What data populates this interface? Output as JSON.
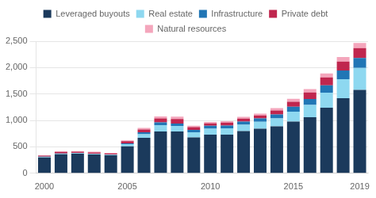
{
  "chart_data": {
    "type": "bar",
    "stacked": true,
    "categories": [
      "2000",
      null,
      null,
      null,
      null,
      "2005",
      null,
      null,
      null,
      null,
      "2010",
      null,
      null,
      null,
      null,
      "2015",
      null,
      null,
      null,
      "2019"
    ],
    "series": [
      {
        "name": "Leveraged buyouts",
        "color": "#1b3a5c",
        "values": [
          300,
          360,
          370,
          355,
          340,
          510,
          670,
          790,
          790,
          680,
          730,
          730,
          800,
          845,
          890,
          980,
          1060,
          1240,
          1420,
          1580
        ]
      },
      {
        "name": "Real estate",
        "color": "#8ed8f0",
        "values": [
          10,
          12,
          12,
          12,
          12,
          40,
          70,
          120,
          105,
          95,
          115,
          120,
          120,
          130,
          150,
          185,
          235,
          285,
          360,
          415
        ]
      },
      {
        "name": "Infrastructure",
        "color": "#2176b5",
        "values": [
          5,
          5,
          5,
          5,
          5,
          18,
          35,
          55,
          48,
          45,
          55,
          55,
          60,
          65,
          75,
          95,
          110,
          140,
          165,
          185
        ]
      },
      {
        "name": "Private debt",
        "color": "#c0264e",
        "values": [
          20,
          28,
          22,
          22,
          18,
          38,
          55,
          75,
          85,
          55,
          45,
          55,
          55,
          55,
          75,
          95,
          125,
          150,
          170,
          190
        ]
      },
      {
        "name": "Natural resources",
        "color": "#f4a6bc",
        "values": [
          8,
          12,
          12,
          16,
          12,
          18,
          28,
          38,
          45,
          25,
          25,
          25,
          35,
          35,
          45,
          55,
          65,
          75,
          85,
          95
        ]
      }
    ],
    "ylim": [
      0,
      2500
    ],
    "yticks": [
      0,
      500,
      {
        "value": 1000,
        "label": "1,000"
      },
      {
        "value": 1500,
        "label": "1,500"
      },
      {
        "value": 2000,
        "label": "2,000"
      },
      {
        "value": 2500,
        "label": "2,500"
      }
    ],
    "grid": true,
    "legend": "top"
  }
}
